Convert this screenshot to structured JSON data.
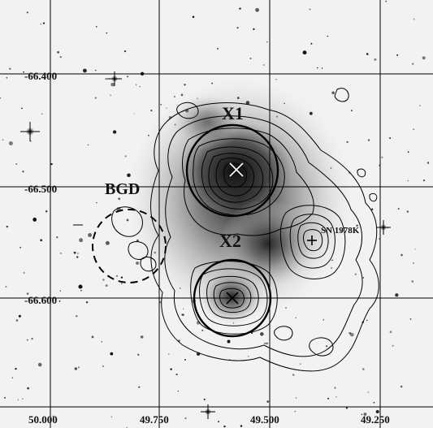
{
  "image": {
    "colors": {
      "background": "#f2f2f2",
      "grid": "#000000",
      "contours": "#000000",
      "galaxy": "#3a3a3a"
    },
    "y_axis_ticks": [
      "-66.400",
      "-66.500",
      "-66.600"
    ],
    "x_axis_ticks": [
      "50.000",
      "49.750",
      "49.500",
      "49.250"
    ],
    "sources": {
      "x1": "X1",
      "x2": "X2",
      "bgd": "BGD",
      "supernova": "SN 1978K"
    }
  }
}
